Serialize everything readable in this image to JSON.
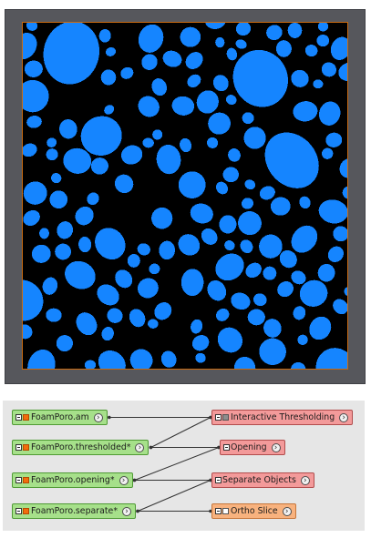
{
  "viewer": {
    "colors": {
      "background": "#56575c",
      "frame": "#c96a10",
      "foreground": "#1585ff",
      "void": "#000000"
    }
  },
  "pool": {
    "nodes": [
      {
        "id": "foamporo-am",
        "label": "FoamPoro.am",
        "kind": "data",
        "icon": "orange"
      },
      {
        "id": "foamporo-thresholded",
        "label": "FoamPoro.thresholded*",
        "kind": "data",
        "icon": "orange"
      },
      {
        "id": "foamporo-opening",
        "label": "FoamPoro.opening*",
        "kind": "data",
        "icon": "orange"
      },
      {
        "id": "foamporo-separate",
        "label": "FoamPoro.separate*",
        "kind": "data",
        "icon": "orange"
      },
      {
        "id": "interactive-thresholding",
        "label": "Interactive Thresholding",
        "kind": "compute",
        "icon": "gray"
      },
      {
        "id": "opening",
        "label": "Opening",
        "kind": "compute",
        "icon": "none"
      },
      {
        "id": "separate-objects",
        "label": "Separate Objects",
        "kind": "compute",
        "icon": "none"
      },
      {
        "id": "ortho-slice",
        "label": "Ortho Slice",
        "kind": "display",
        "icon": "white"
      }
    ],
    "connections": [
      {
        "from": "foamporo-am",
        "to": "interactive-thresholding"
      },
      {
        "from": "interactive-thresholding",
        "to": "foamporo-thresholded"
      },
      {
        "from": "foamporo-thresholded",
        "to": "opening"
      },
      {
        "from": "opening",
        "to": "foamporo-opening"
      },
      {
        "from": "foamporo-opening",
        "to": "separate-objects"
      },
      {
        "from": "separate-objects",
        "to": "foamporo-separate"
      },
      {
        "from": "foamporo-separate",
        "to": "ortho-slice"
      }
    ],
    "colors": {
      "data": "#a6e08a",
      "compute": "#f39a9a",
      "display": "#f8b27e",
      "icon_orange": "#f26d0c"
    }
  }
}
